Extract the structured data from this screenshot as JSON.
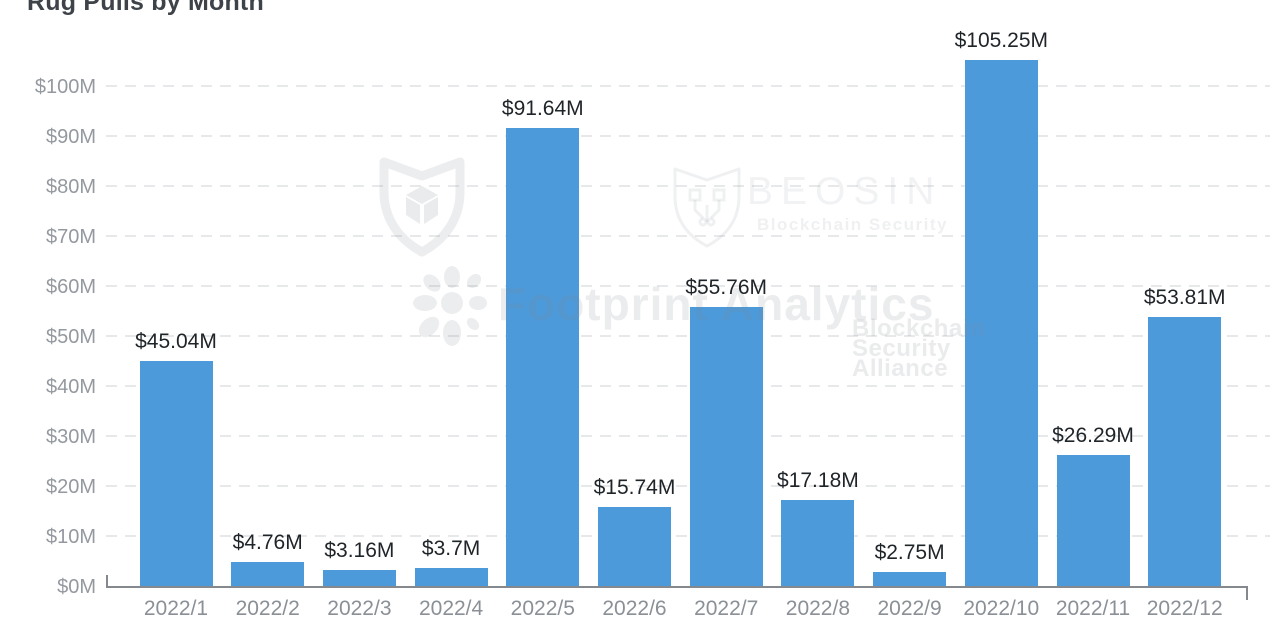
{
  "title": "Rug Pulls by Month",
  "watermarks": {
    "bsa": {
      "lines": [
        "Blockchain",
        "Security",
        "Alliance"
      ]
    },
    "beosin": {
      "name": "BEOSIN",
      "subtitle": "Blockchain Security"
    },
    "footprint": {
      "name": "Footprint Analytics"
    }
  },
  "chart_data": {
    "type": "bar",
    "title": "Rug Pulls by Month",
    "categories": [
      "2022/1",
      "2022/2",
      "2022/3",
      "2022/4",
      "2022/5",
      "2022/6",
      "2022/7",
      "2022/8",
      "2022/9",
      "2022/10",
      "2022/11",
      "2022/12"
    ],
    "values": [
      45.04,
      4.76,
      3.16,
      3.7,
      91.64,
      15.74,
      55.76,
      17.18,
      2.75,
      105.25,
      26.29,
      53.81
    ],
    "value_labels": [
      "$45.04M",
      "$4.76M",
      "$3.16M",
      "$3.7M",
      "$91.64M",
      "$15.74M",
      "$55.76M",
      "$17.18M",
      "$2.75M",
      "$105.25M",
      "$26.29M",
      "$53.81M"
    ],
    "unit": "USD millions",
    "y_ticks": [
      "$0M",
      "$10M",
      "$20M",
      "$30M",
      "$40M",
      "$50M",
      "$60M",
      "$70M",
      "$80M",
      "$90M",
      "$100M"
    ],
    "ylim": [
      0,
      110
    ],
    "grid": "dashed-horizontal",
    "legend": "none",
    "bar_color": "#4d9adb",
    "grid_color": "#e7e8ea",
    "axis_line_color": "#85898e",
    "value_label_color": "#1f2428",
    "tick_label_color": "#94999f"
  }
}
